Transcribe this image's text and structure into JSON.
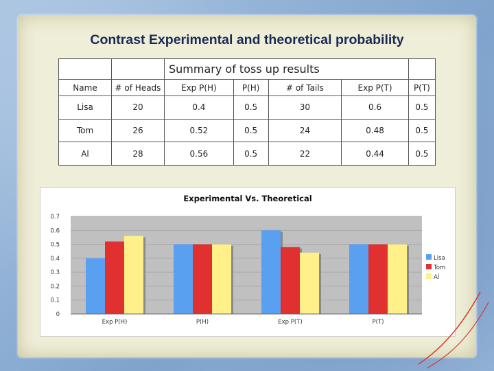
{
  "slide": {
    "title": "Contrast Experimental and theoretical probability"
  },
  "table": {
    "caption": "Summary of toss up results",
    "headers": [
      "Name",
      "# of Heads",
      "Exp P(H)",
      "P(H)",
      "# of Tails",
      "Exp P(T)",
      "P(T)"
    ],
    "rows": [
      [
        "Lisa",
        "20",
        "0.4",
        "0.5",
        "30",
        "0.6",
        "0.5"
      ],
      [
        "Tom",
        "26",
        "0.52",
        "0.5",
        "24",
        "0.48",
        "0.5"
      ],
      [
        "Al",
        "28",
        "0.56",
        "0.5",
        "22",
        "0.44",
        "0.5"
      ]
    ]
  },
  "chart_data": {
    "type": "bar",
    "title": "Experimental Vs. Theoretical",
    "categories": [
      "Exp P(H)",
      "P(H)",
      "Exp P(T)",
      "P(T)"
    ],
    "series": [
      {
        "name": "Lisa",
        "values": [
          0.4,
          0.5,
          0.6,
          0.5
        ],
        "color": "#5aa0f0"
      },
      {
        "name": "Tom",
        "values": [
          0.52,
          0.5,
          0.48,
          0.5
        ],
        "color": "#e03030"
      },
      {
        "name": "Al",
        "values": [
          0.56,
          0.5,
          0.44,
          0.5
        ],
        "color": "#fff08a"
      }
    ],
    "yticks": [
      "0",
      "0.1",
      "0.2",
      "0.3",
      "0.4",
      "0.5",
      "0.6",
      "0.7"
    ],
    "ylim": [
      0,
      0.7
    ],
    "grid": true,
    "legend": "right",
    "plot_background": "#c0c0c0"
  }
}
